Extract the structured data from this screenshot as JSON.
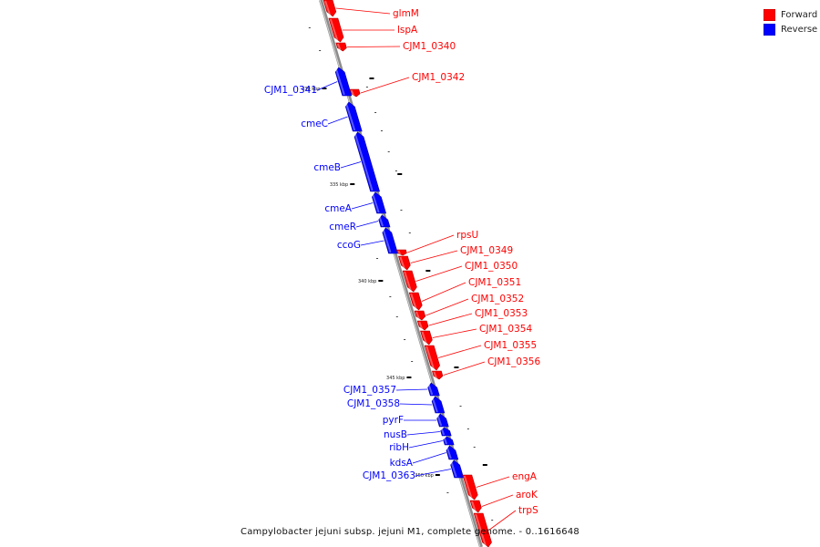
{
  "colors": {
    "forward": "#ff0000",
    "reverse": "#0000ff",
    "backbone": "#8c8c8c"
  },
  "legend": [
    {
      "label": "Forward",
      "color": "#ff0000"
    },
    {
      "label": "Reverse",
      "color": "#0000ff"
    }
  ],
  "caption": "Campylobacter jejuni subsp. jejuni M1, complete genome. - 0..1616648",
  "ticks": [
    {
      "label": "330 kbp"
    },
    {
      "label": "335 kbp"
    },
    {
      "label": "340 kbp"
    },
    {
      "label": "345 kbp"
    },
    {
      "label": "350 kbp"
    }
  ],
  "genes": [
    {
      "name": "glmM",
      "strand": "forward"
    },
    {
      "name": "lspA",
      "strand": "forward"
    },
    {
      "name": "CJM1_0340",
      "strand": "forward"
    },
    {
      "name": "CJM1_0342",
      "strand": "forward"
    },
    {
      "name": "CJM1_0341",
      "strand": "reverse"
    },
    {
      "name": "cmeC",
      "strand": "reverse"
    },
    {
      "name": "cmeB",
      "strand": "reverse"
    },
    {
      "name": "cmeA",
      "strand": "reverse"
    },
    {
      "name": "cmeR",
      "strand": "reverse"
    },
    {
      "name": "ccoG",
      "strand": "reverse"
    },
    {
      "name": "rpsU",
      "strand": "forward"
    },
    {
      "name": "CJM1_0349",
      "strand": "forward"
    },
    {
      "name": "CJM1_0350",
      "strand": "forward"
    },
    {
      "name": "CJM1_0351",
      "strand": "forward"
    },
    {
      "name": "CJM1_0352",
      "strand": "forward"
    },
    {
      "name": "CJM1_0353",
      "strand": "forward"
    },
    {
      "name": "CJM1_0354",
      "strand": "forward"
    },
    {
      "name": "CJM1_0355",
      "strand": "forward"
    },
    {
      "name": "CJM1_0356",
      "strand": "forward"
    },
    {
      "name": "CJM1_0357",
      "strand": "reverse"
    },
    {
      "name": "CJM1_0358",
      "strand": "reverse"
    },
    {
      "name": "pyrF",
      "strand": "reverse"
    },
    {
      "name": "nusB",
      "strand": "reverse"
    },
    {
      "name": "ribH",
      "strand": "reverse"
    },
    {
      "name": "kdsA",
      "strand": "reverse"
    },
    {
      "name": "CJM1_0363",
      "strand": "reverse"
    },
    {
      "name": "engA",
      "strand": "forward"
    },
    {
      "name": "aroK",
      "strand": "forward"
    },
    {
      "name": "trpS",
      "strand": "forward"
    }
  ]
}
